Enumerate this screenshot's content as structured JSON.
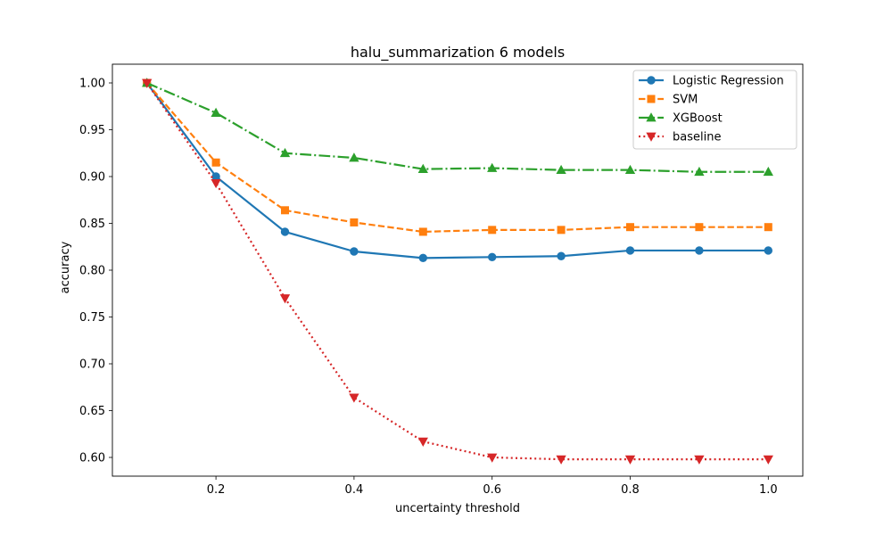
{
  "chart_data": {
    "type": "line",
    "title": "halu_summarization 6 models",
    "xlabel": "uncertainty threshold",
    "ylabel": "accuracy",
    "xlim": [
      0.05,
      1.05
    ],
    "ylim": [
      0.58,
      1.02
    ],
    "xticks": [
      0.2,
      0.4,
      0.6,
      0.8,
      1.0
    ],
    "xtick_labels": [
      "0.2",
      "0.4",
      "0.6",
      "0.8",
      "1.0"
    ],
    "yticks": [
      0.6,
      0.65,
      0.7,
      0.75,
      0.8,
      0.85,
      0.9,
      0.95,
      1.0
    ],
    "ytick_labels": [
      "0.60",
      "0.65",
      "0.70",
      "0.75",
      "0.80",
      "0.85",
      "0.90",
      "0.95",
      "1.00"
    ],
    "grid": false,
    "legend_position": "top-right",
    "x": [
      0.1,
      0.2,
      0.3,
      0.4,
      0.5,
      0.6,
      0.7,
      0.8,
      0.9,
      1.0
    ],
    "series": [
      {
        "name": "Logistic Regression",
        "color": "#1f77b4",
        "line_style": "solid",
        "marker": "circle",
        "values": [
          1.0,
          0.9,
          0.841,
          0.82,
          0.813,
          0.814,
          0.815,
          0.821,
          0.821,
          0.821
        ]
      },
      {
        "name": "SVM",
        "color": "#ff7f0e",
        "line_style": "dashed",
        "marker": "square",
        "values": [
          1.0,
          0.915,
          0.864,
          0.851,
          0.841,
          0.843,
          0.843,
          0.846,
          0.846,
          0.846
        ]
      },
      {
        "name": "XGBoost",
        "color": "#2ca02c",
        "line_style": "dashdot",
        "marker": "triangle-up",
        "values": [
          1.0,
          0.968,
          0.925,
          0.92,
          0.908,
          0.909,
          0.907,
          0.907,
          0.905,
          0.905
        ]
      },
      {
        "name": "baseline",
        "color": "#d62728",
        "line_style": "dotted",
        "marker": "triangle-down",
        "values": [
          1.0,
          0.893,
          0.77,
          0.664,
          0.617,
          0.6,
          0.598,
          0.598,
          0.598,
          0.598
        ]
      }
    ]
  }
}
